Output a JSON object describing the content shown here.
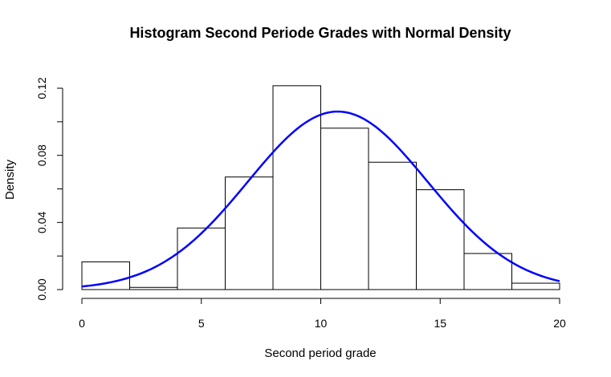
{
  "chart_data": {
    "type": "bar",
    "title": "Histogram Second Periode Grades with Normal Density",
    "xlabel": "Second period grade",
    "ylabel": "Density",
    "xlim": [
      0,
      20
    ],
    "ylim": [
      0,
      0.12
    ],
    "x_ticks": [
      "0",
      "5",
      "10",
      "15",
      "20"
    ],
    "y_ticks": [
      "0.00",
      "0.04",
      "0.08",
      "0.12"
    ],
    "bins": [
      {
        "x0": 0,
        "x1": 2,
        "density": 0.0165
      },
      {
        "x0": 2,
        "x1": 4,
        "density": 0.0013
      },
      {
        "x0": 4,
        "x1": 6,
        "density": 0.0367
      },
      {
        "x0": 6,
        "x1": 8,
        "density": 0.0671
      },
      {
        "x0": 8,
        "x1": 10,
        "density": 0.1215
      },
      {
        "x0": 10,
        "x1": 12,
        "density": 0.0962
      },
      {
        "x0": 12,
        "x1": 14,
        "density": 0.0759
      },
      {
        "x0": 14,
        "x1": 16,
        "density": 0.0595
      },
      {
        "x0": 16,
        "x1": 18,
        "density": 0.0215
      },
      {
        "x0": 18,
        "x1": 20,
        "density": 0.0038
      }
    ],
    "density_curve": {
      "type": "line",
      "distribution": "normal",
      "mean": 10.71,
      "sd": 3.76,
      "color": "#0000ff"
    },
    "grid": false
  }
}
